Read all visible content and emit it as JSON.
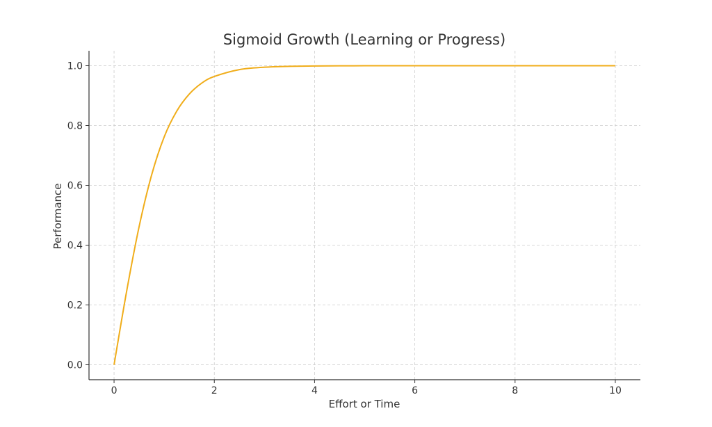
{
  "chart_data": {
    "type": "line",
    "title": "Sigmoid Growth (Learning or Progress)",
    "xlabel": "Effort or Time",
    "ylabel": "Performance",
    "xlim": [
      -0.5,
      10.5
    ],
    "ylim": [
      -0.05,
      1.05
    ],
    "x_ticks": [
      0,
      2,
      4,
      6,
      8,
      10
    ],
    "y_ticks": [
      0.0,
      0.2,
      0.4,
      0.6,
      0.8,
      1.0
    ],
    "x_tick_labels": [
      "0",
      "2",
      "4",
      "6",
      "8",
      "10"
    ],
    "y_tick_labels": [
      "0.0",
      "0.2",
      "0.4",
      "0.6",
      "0.8",
      "1.0"
    ],
    "grid": true,
    "series": [
      {
        "color": "#f0ad1a",
        "x": [
          0,
          0.25,
          0.5,
          0.75,
          1,
          1.25,
          1.5,
          1.75,
          2,
          2.5,
          3,
          3.5,
          4,
          4.5,
          5,
          5.5,
          6,
          7,
          8,
          9,
          10
        ],
        "y": [
          0,
          0.245,
          0.462,
          0.635,
          0.762,
          0.848,
          0.905,
          0.942,
          0.964,
          0.987,
          0.995,
          0.998,
          0.999,
          0.9997,
          0.9999,
          1.0,
          1.0,
          1.0,
          1.0,
          1.0,
          1.0
        ]
      }
    ]
  }
}
